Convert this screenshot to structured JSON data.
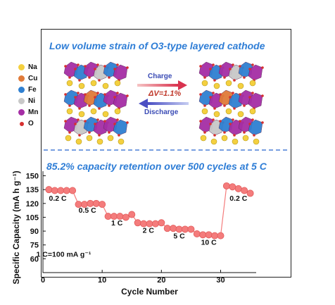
{
  "header": {
    "title": "Low volume strain of O3-type layered cathode"
  },
  "structure": {
    "legend": [
      {
        "label": "Na",
        "color": "#f4d03f"
      },
      {
        "label": "Cu",
        "color": "#e07b39"
      },
      {
        "label": "Fe",
        "color": "#2f80d1"
      },
      {
        "label": "Ni",
        "color": "#c8c8c8"
      },
      {
        "label": "Mn",
        "color": "#a52ea5"
      },
      {
        "label": "O",
        "color": "#d62f2f"
      }
    ],
    "charge_label": "Charge",
    "discharge_label": "Discharge",
    "volume_change": "ΔV=1.1%"
  },
  "subtitle": "85.2% capacity retention over 500 cycles at 5 C",
  "chart_data": {
    "type": "scatter",
    "title": "85.2% capacity retention over 500 cycles at 5 C",
    "xlabel": "Cycle Number",
    "ylabel": "Specific Capacity (mA h g⁻¹)",
    "xlim": [
      0,
      36
    ],
    "ylim": [
      45,
      155
    ],
    "xticks": [
      0,
      10,
      20,
      30
    ],
    "yticks": [
      60,
      75,
      90,
      105,
      120,
      135,
      150
    ],
    "grid": false,
    "series": [
      {
        "color": "#f47c7c",
        "x": [
          1,
          2,
          3,
          4,
          5,
          6,
          7,
          8,
          9,
          10,
          11,
          12,
          13,
          14,
          15,
          16,
          17,
          18,
          19,
          20,
          21,
          22,
          23,
          24,
          25,
          26,
          27,
          28,
          29,
          30,
          31,
          32,
          33,
          34,
          35
        ],
        "y": [
          135,
          134,
          134,
          134,
          134,
          119,
          119,
          120,
          120,
          119,
          106,
          106,
          106,
          105,
          108,
          99,
          98,
          98,
          98,
          99,
          93,
          93,
          92,
          92,
          92,
          87,
          86,
          86,
          85,
          85,
          139,
          138,
          136,
          134,
          131
        ]
      }
    ],
    "annotations": [
      {
        "text": "0.2 C",
        "x": 2.5,
        "y": 123
      },
      {
        "text": "0.5 C",
        "x": 7.5,
        "y": 110
      },
      {
        "text": "1 C",
        "x": 12.5,
        "y": 96
      },
      {
        "text": "2 C",
        "x": 17.8,
        "y": 88
      },
      {
        "text": "5 C",
        "x": 23,
        "y": 82
      },
      {
        "text": "10 C",
        "x": 28,
        "y": 75
      },
      {
        "text": "0.2 C",
        "x": 33,
        "y": 123
      },
      {
        "text": "1 C=100 mA g⁻¹",
        "x": 3.5,
        "y": 62
      }
    ]
  }
}
